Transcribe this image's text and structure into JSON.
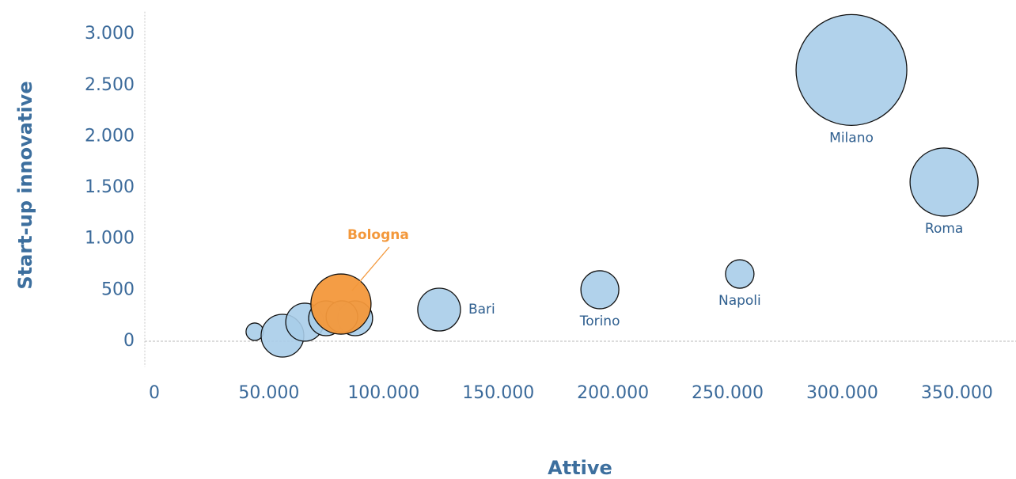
{
  "chart_data": {
    "type": "bubble",
    "x_label": "Attive",
    "y_label": "Start-up innovative",
    "x": [
      304000,
      344400,
      255300,
      194300,
      124200,
      43800,
      55900,
      65600,
      74900,
      87600,
      81800,
      81400
    ],
    "y": [
      2650,
      1555,
      657,
      503,
      309,
      93,
      54,
      186,
      224,
      224,
      240,
      363
    ],
    "sizes": [
      4900,
      1850,
      324,
      576,
      729,
      121,
      729,
      576,
      484,
      484,
      400,
      1444
    ],
    "labels": [
      "Milano",
      "Roma",
      "Napoli",
      "Torino",
      "Bari",
      null,
      null,
      null,
      null,
      null,
      null,
      "Bologna"
    ],
    "label_positions": [
      "below",
      "below",
      "below",
      "below",
      "right",
      null,
      null,
      null,
      null,
      null,
      null,
      "above-right"
    ],
    "color": "#a8cde9",
    "highlight_index": 11,
    "highlight_color": "#f3983b",
    "xlim": [
      -5000,
      375000
    ],
    "xticks": [
      0,
      {
        "value": 50000,
        "label": "50.000"
      },
      {
        "value": 100000,
        "label": "100.000"
      },
      {
        "value": 150000,
        "label": "150.000"
      },
      {
        "value": 200000,
        "label": "200.000"
      },
      {
        "value": 250000,
        "label": "250.000"
      },
      {
        "value": 300000,
        "label": "300.000"
      },
      {
        "value": 350000,
        "label": "350.000"
      }
    ],
    "ylim": [
      -250,
      3250
    ],
    "yticks": [
      0,
      500,
      {
        "value": 1000,
        "label": "1.000"
      },
      {
        "value": 1500,
        "label": "1.500"
      },
      {
        "value": 2000,
        "label": "2.000"
      },
      {
        "value": 2500,
        "label": "2.500"
      },
      {
        "value": 3000,
        "label": "3.000"
      }
    ]
  }
}
